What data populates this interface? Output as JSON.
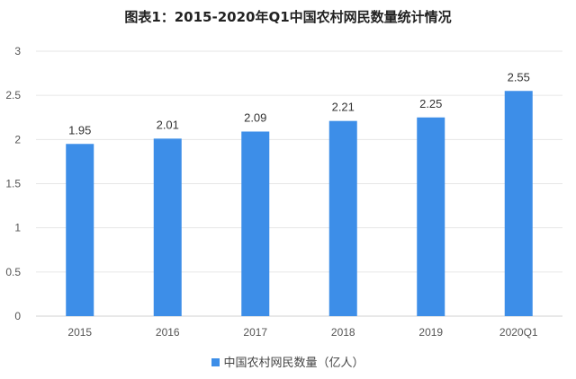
{
  "chart_data": {
    "type": "bar",
    "title": "图表1：2015-2020年Q1中国农村网民数量统计情况",
    "categories": [
      "2015",
      "2016",
      "2017",
      "2018",
      "2019",
      "2020Q1"
    ],
    "series": [
      {
        "name": "中国农村网民数量（亿人）",
        "values": [
          1.95,
          2.01,
          2.09,
          2.21,
          2.25,
          2.55
        ]
      }
    ],
    "data_labels": [
      "1.95",
      "2.01",
      "2.09",
      "2.21",
      "2.25",
      "2.55"
    ],
    "y_ticks": [
      "0",
      "0.5",
      "1",
      "1.5",
      "2",
      "2.5",
      "3"
    ],
    "ylim": [
      0,
      3
    ],
    "grid": true,
    "legend_position": "bottom",
    "bar_color": "#3D8EE8",
    "grid_color": "#E6E6E6",
    "axis_color": "#D0D0D0"
  }
}
